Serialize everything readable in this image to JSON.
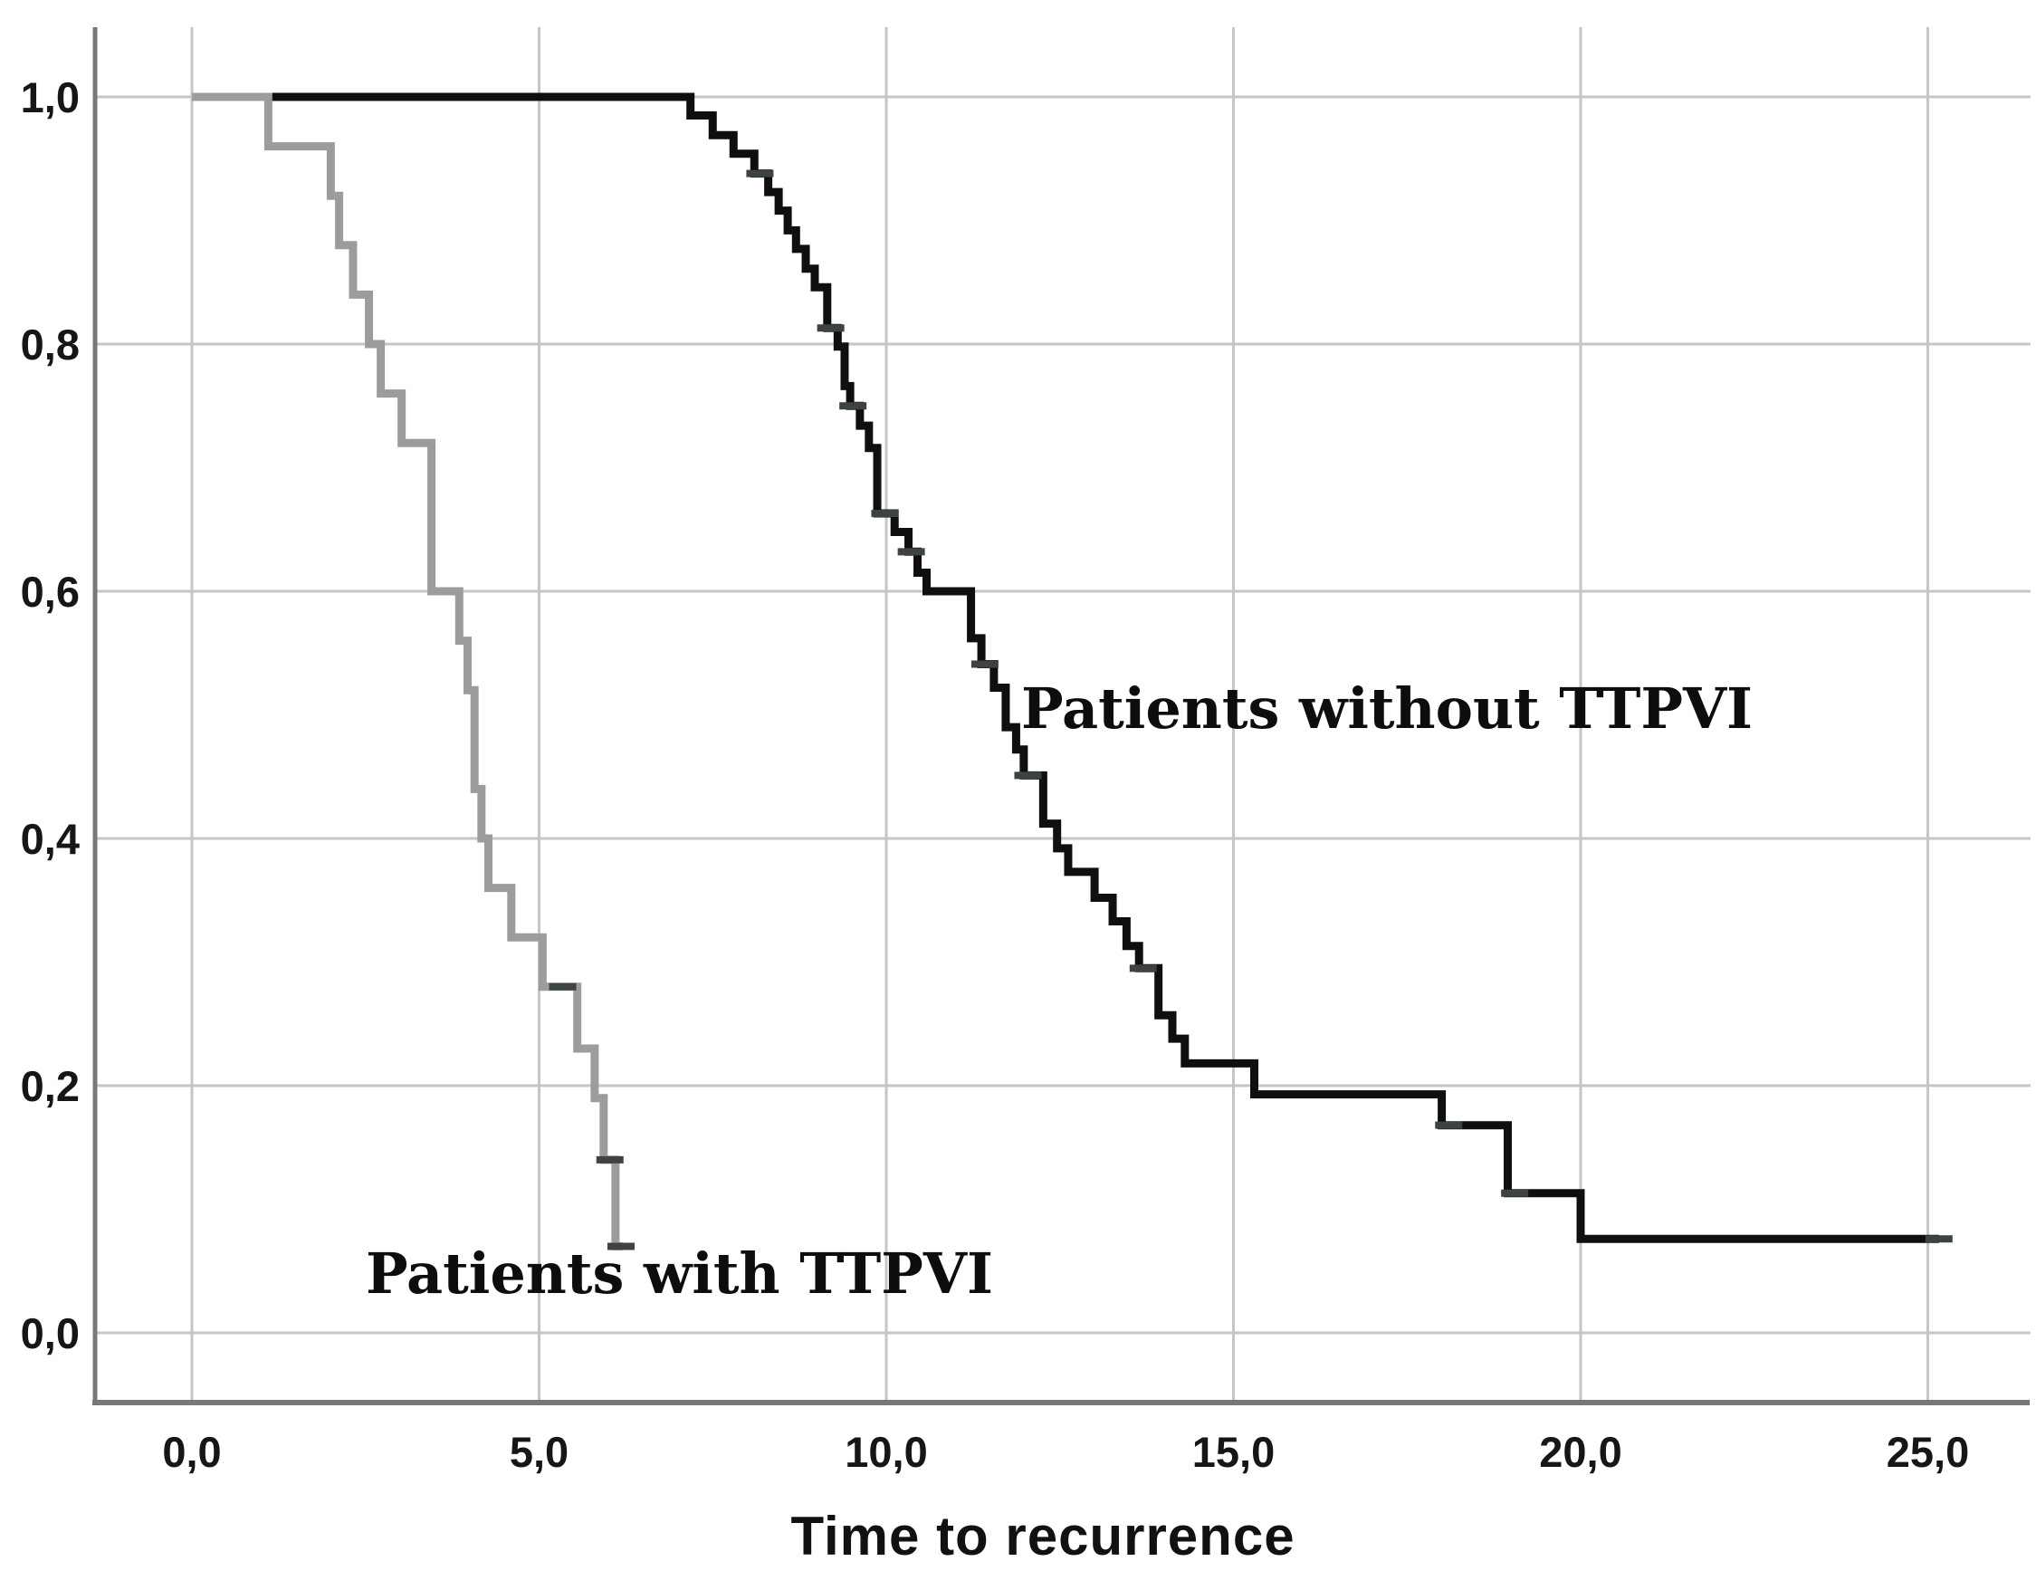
{
  "chart_data": {
    "type": "line",
    "subtype": "kaplan-meier-step-curves",
    "title": "",
    "xlabel": "Time to recurrence",
    "ylabel": "",
    "grid": true,
    "legend_position": "none (curves labeled by in-plot annotations)",
    "xlim": [
      -1.4,
      26.6
    ],
    "ylim": [
      -0.06,
      1.06
    ],
    "x_ticks": {
      "values": [
        0,
        5,
        10,
        15,
        20,
        25
      ],
      "labels": [
        "0,0",
        "5,0",
        "10,0",
        "15,0",
        "20,0",
        "25,0"
      ]
    },
    "y_ticks": {
      "values": [
        0,
        0.2,
        0.4,
        0.6,
        0.8,
        1.0
      ],
      "labels": [
        "0,0",
        "0,2",
        "0,4",
        "0,6",
        "0,8",
        "1,0"
      ]
    },
    "series": [
      {
        "name": "Patients without TTPVI",
        "color": "#0f0f0f",
        "censor_color": "#3d4340",
        "end": 25.16,
        "steps": [
          [
            0,
            1.0
          ],
          [
            7.18,
            0.985
          ],
          [
            7.5,
            0.969
          ],
          [
            7.8,
            0.954
          ],
          [
            8.1,
            0.938
          ],
          [
            8.3,
            0.923
          ],
          [
            8.45,
            0.908
          ],
          [
            8.58,
            0.892
          ],
          [
            8.7,
            0.877
          ],
          [
            8.84,
            0.861
          ],
          [
            8.97,
            0.846
          ],
          [
            9.15,
            0.813
          ],
          [
            9.3,
            0.798
          ],
          [
            9.4,
            0.766
          ],
          [
            9.48,
            0.75
          ],
          [
            9.62,
            0.734
          ],
          [
            9.75,
            0.716
          ],
          [
            9.87,
            0.663
          ],
          [
            10.12,
            0.648
          ],
          [
            10.32,
            0.632
          ],
          [
            10.45,
            0.615
          ],
          [
            10.58,
            0.6
          ],
          [
            11.22,
            0.562
          ],
          [
            11.37,
            0.541
          ],
          [
            11.55,
            0.522
          ],
          [
            11.72,
            0.49
          ],
          [
            11.87,
            0.472
          ],
          [
            11.98,
            0.451
          ],
          [
            12.26,
            0.412
          ],
          [
            12.46,
            0.392
          ],
          [
            12.62,
            0.373
          ],
          [
            13.0,
            0.352
          ],
          [
            13.26,
            0.333
          ],
          [
            13.46,
            0.313
          ],
          [
            13.64,
            0.295
          ],
          [
            13.92,
            0.257
          ],
          [
            14.12,
            0.238
          ],
          [
            14.3,
            0.218
          ],
          [
            15.3,
            0.193
          ],
          [
            18.0,
            0.168
          ],
          [
            18.95,
            0.113
          ],
          [
            20.0,
            0.076
          ]
        ],
        "censors": [
          [
            8.18,
            0.938
          ],
          [
            9.2,
            0.813
          ],
          [
            9.52,
            0.75
          ],
          [
            9.98,
            0.663
          ],
          [
            10.36,
            0.632
          ],
          [
            11.42,
            0.541
          ],
          [
            12.04,
            0.451
          ],
          [
            13.7,
            0.295
          ],
          [
            18.1,
            0.168
          ],
          [
            19.05,
            0.113
          ],
          [
            25.16,
            0.076
          ]
        ]
      },
      {
        "name": "Patients with TTPVI",
        "color": "#9c9c9c",
        "censor_color": "#3d4340",
        "end": 6.2,
        "steps": [
          [
            0,
            1.0
          ],
          [
            1.1,
            0.96
          ],
          [
            2.0,
            0.92
          ],
          [
            2.12,
            0.88
          ],
          [
            2.32,
            0.84
          ],
          [
            2.55,
            0.8
          ],
          [
            2.72,
            0.76
          ],
          [
            3.02,
            0.72
          ],
          [
            3.45,
            0.6
          ],
          [
            3.85,
            0.56
          ],
          [
            3.97,
            0.52
          ],
          [
            4.07,
            0.44
          ],
          [
            4.17,
            0.4
          ],
          [
            4.27,
            0.36
          ],
          [
            4.6,
            0.32
          ],
          [
            5.05,
            0.28
          ],
          [
            5.55,
            0.23
          ],
          [
            5.8,
            0.19
          ],
          [
            5.93,
            0.14
          ],
          [
            6.1,
            0.07
          ]
        ],
        "censors": [
          [
            5.34,
            0.28
          ],
          [
            6.02,
            0.14
          ],
          [
            6.18,
            0.07
          ]
        ]
      }
    ],
    "annotations": [
      {
        "text": "Patients without TTPVI",
        "x": 12.0,
        "y": 0.5
      },
      {
        "text": "Patients with TTPVI",
        "x": 2.5,
        "y": 0.045
      }
    ]
  },
  "colors": {
    "background": "#ffffff",
    "grid": "#c6c6c6",
    "axis": "#787878",
    "tick_text": "#161616",
    "curve_black": "#0f0f0f",
    "curve_gray": "#9c9c9c"
  }
}
